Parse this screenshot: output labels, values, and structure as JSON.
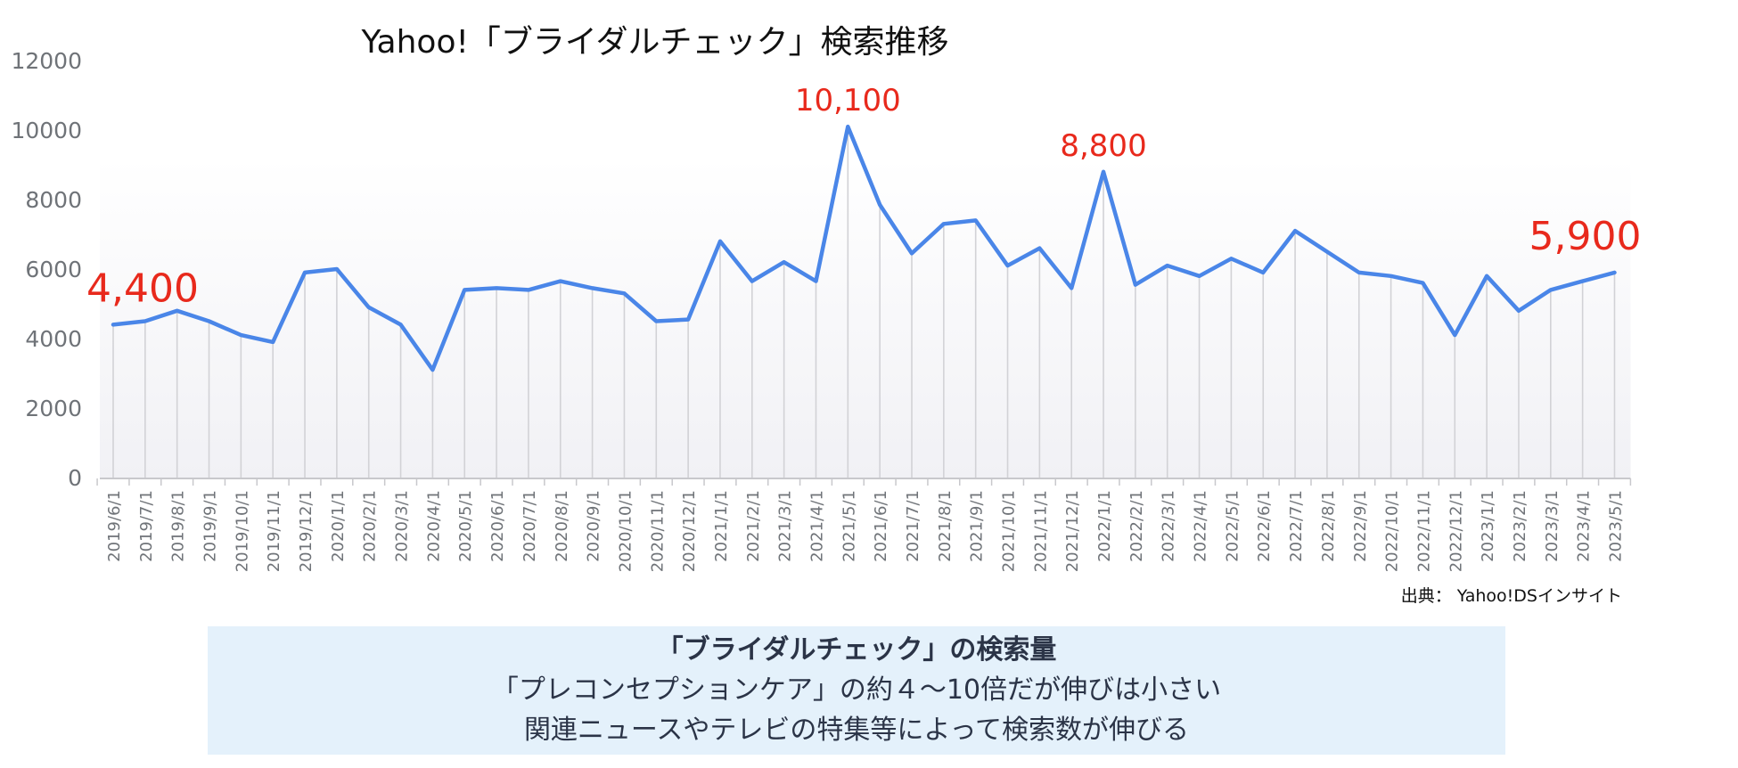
{
  "chart_data": {
    "type": "line",
    "title": "Yahoo!「ブライダルチェック」検索推移",
    "source": "出典： Yahoo!DSインサイト",
    "ylim": [
      0,
      12000
    ],
    "yticks": [
      "0",
      "2000",
      "4000",
      "6000",
      "8000",
      "10000",
      "12000"
    ],
    "grid": "vertical drop lines",
    "colors": {
      "line": "#4a86e8",
      "highlight": "#e8291c"
    },
    "categories": [
      "2019/6/1",
      "2019/7/1",
      "2019/8/1",
      "2019/9/1",
      "2019/10/1",
      "2019/11/1",
      "2019/12/1",
      "2020/1/1",
      "2020/2/1",
      "2020/3/1",
      "2020/4/1",
      "2020/5/1",
      "2020/6/1",
      "2020/7/1",
      "2020/8/1",
      "2020/9/1",
      "2020/10/1",
      "2020/11/1",
      "2020/12/1",
      "2021/1/1",
      "2021/2/1",
      "2021/3/1",
      "2021/4/1",
      "2021/5/1",
      "2021/6/1",
      "2021/7/1",
      "2021/8/1",
      "2021/9/1",
      "2021/10/1",
      "2021/11/1",
      "2021/12/1",
      "2022/1/1",
      "2022/2/1",
      "2022/3/1",
      "2022/4/1",
      "2022/5/1",
      "2022/6/1",
      "2022/7/1",
      "2022/8/1",
      "2022/9/1",
      "2022/10/1",
      "2022/11/1",
      "2022/12/1",
      "2023/1/1",
      "2023/2/1",
      "2023/3/1",
      "2023/4/1",
      "2023/5/1"
    ],
    "values": [
      4400,
      4500,
      4800,
      4500,
      4100,
      3900,
      5900,
      6000,
      4900,
      4400,
      3100,
      5400,
      5450,
      5400,
      5650,
      5450,
      5300,
      4500,
      4550,
      6800,
      5650,
      6200,
      5650,
      10100,
      7850,
      6450,
      7300,
      7400,
      6100,
      6600,
      5450,
      8800,
      5550,
      6100,
      5800,
      6300,
      5900,
      7100,
      6500,
      5900,
      5800,
      5600,
      4100,
      5800,
      4800,
      5400,
      5650,
      5900
    ],
    "annotations": [
      {
        "index": 0,
        "label": "4,400",
        "size": "large"
      },
      {
        "index": 23,
        "label": "10,100",
        "size": "medium"
      },
      {
        "index": 31,
        "label": "8,800",
        "size": "medium"
      },
      {
        "index": 47,
        "label": "5,900",
        "size": "large"
      }
    ]
  },
  "note": {
    "line1": "「ブライダルチェック」の検索量",
    "line2": "「プレコンセプションケア」の約４〜10倍だが伸びは小さい",
    "line3": "関連ニュースやテレビの特集等によって検索数が伸びる"
  }
}
